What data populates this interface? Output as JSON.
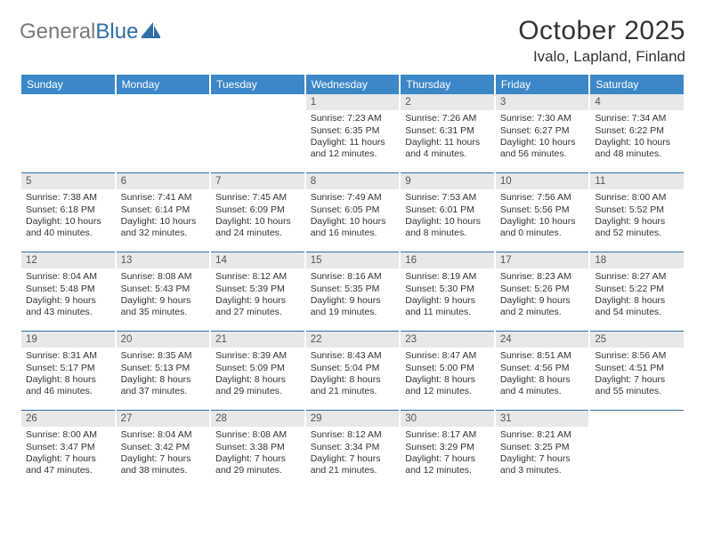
{
  "logo": {
    "text_gray": "General",
    "text_blue": "Blue"
  },
  "title": "October 2025",
  "location": "Ivalo, Lapland, Finland",
  "colors": {
    "header_bg": "#3b87c8",
    "header_text": "#ffffff",
    "rule": "#2f6fa8",
    "daynum_bg": "#e8e8e8",
    "text": "#333333",
    "logo_gray": "#7a7a7a",
    "logo_blue": "#2f6fa8"
  },
  "day_headers": [
    "Sunday",
    "Monday",
    "Tuesday",
    "Wednesday",
    "Thursday",
    "Friday",
    "Saturday"
  ],
  "weeks": [
    [
      {
        "empty": true
      },
      {
        "empty": true
      },
      {
        "empty": true
      },
      {
        "num": "1",
        "sunrise": "Sunrise: 7:23 AM",
        "sunset": "Sunset: 6:35 PM",
        "daylight1": "Daylight: 11 hours",
        "daylight2": "and 12 minutes."
      },
      {
        "num": "2",
        "sunrise": "Sunrise: 7:26 AM",
        "sunset": "Sunset: 6:31 PM",
        "daylight1": "Daylight: 11 hours",
        "daylight2": "and 4 minutes."
      },
      {
        "num": "3",
        "sunrise": "Sunrise: 7:30 AM",
        "sunset": "Sunset: 6:27 PM",
        "daylight1": "Daylight: 10 hours",
        "daylight2": "and 56 minutes."
      },
      {
        "num": "4",
        "sunrise": "Sunrise: 7:34 AM",
        "sunset": "Sunset: 6:22 PM",
        "daylight1": "Daylight: 10 hours",
        "daylight2": "and 48 minutes."
      }
    ],
    [
      {
        "num": "5",
        "sunrise": "Sunrise: 7:38 AM",
        "sunset": "Sunset: 6:18 PM",
        "daylight1": "Daylight: 10 hours",
        "daylight2": "and 40 minutes."
      },
      {
        "num": "6",
        "sunrise": "Sunrise: 7:41 AM",
        "sunset": "Sunset: 6:14 PM",
        "daylight1": "Daylight: 10 hours",
        "daylight2": "and 32 minutes."
      },
      {
        "num": "7",
        "sunrise": "Sunrise: 7:45 AM",
        "sunset": "Sunset: 6:09 PM",
        "daylight1": "Daylight: 10 hours",
        "daylight2": "and 24 minutes."
      },
      {
        "num": "8",
        "sunrise": "Sunrise: 7:49 AM",
        "sunset": "Sunset: 6:05 PM",
        "daylight1": "Daylight: 10 hours",
        "daylight2": "and 16 minutes."
      },
      {
        "num": "9",
        "sunrise": "Sunrise: 7:53 AM",
        "sunset": "Sunset: 6:01 PM",
        "daylight1": "Daylight: 10 hours",
        "daylight2": "and 8 minutes."
      },
      {
        "num": "10",
        "sunrise": "Sunrise: 7:56 AM",
        "sunset": "Sunset: 5:56 PM",
        "daylight1": "Daylight: 10 hours",
        "daylight2": "and 0 minutes."
      },
      {
        "num": "11",
        "sunrise": "Sunrise: 8:00 AM",
        "sunset": "Sunset: 5:52 PM",
        "daylight1": "Daylight: 9 hours",
        "daylight2": "and 52 minutes."
      }
    ],
    [
      {
        "num": "12",
        "sunrise": "Sunrise: 8:04 AM",
        "sunset": "Sunset: 5:48 PM",
        "daylight1": "Daylight: 9 hours",
        "daylight2": "and 43 minutes."
      },
      {
        "num": "13",
        "sunrise": "Sunrise: 8:08 AM",
        "sunset": "Sunset: 5:43 PM",
        "daylight1": "Daylight: 9 hours",
        "daylight2": "and 35 minutes."
      },
      {
        "num": "14",
        "sunrise": "Sunrise: 8:12 AM",
        "sunset": "Sunset: 5:39 PM",
        "daylight1": "Daylight: 9 hours",
        "daylight2": "and 27 minutes."
      },
      {
        "num": "15",
        "sunrise": "Sunrise: 8:16 AM",
        "sunset": "Sunset: 5:35 PM",
        "daylight1": "Daylight: 9 hours",
        "daylight2": "and 19 minutes."
      },
      {
        "num": "16",
        "sunrise": "Sunrise: 8:19 AM",
        "sunset": "Sunset: 5:30 PM",
        "daylight1": "Daylight: 9 hours",
        "daylight2": "and 11 minutes."
      },
      {
        "num": "17",
        "sunrise": "Sunrise: 8:23 AM",
        "sunset": "Sunset: 5:26 PM",
        "daylight1": "Daylight: 9 hours",
        "daylight2": "and 2 minutes."
      },
      {
        "num": "18",
        "sunrise": "Sunrise: 8:27 AM",
        "sunset": "Sunset: 5:22 PM",
        "daylight1": "Daylight: 8 hours",
        "daylight2": "and 54 minutes."
      }
    ],
    [
      {
        "num": "19",
        "sunrise": "Sunrise: 8:31 AM",
        "sunset": "Sunset: 5:17 PM",
        "daylight1": "Daylight: 8 hours",
        "daylight2": "and 46 minutes."
      },
      {
        "num": "20",
        "sunrise": "Sunrise: 8:35 AM",
        "sunset": "Sunset: 5:13 PM",
        "daylight1": "Daylight: 8 hours",
        "daylight2": "and 37 minutes."
      },
      {
        "num": "21",
        "sunrise": "Sunrise: 8:39 AM",
        "sunset": "Sunset: 5:09 PM",
        "daylight1": "Daylight: 8 hours",
        "daylight2": "and 29 minutes."
      },
      {
        "num": "22",
        "sunrise": "Sunrise: 8:43 AM",
        "sunset": "Sunset: 5:04 PM",
        "daylight1": "Daylight: 8 hours",
        "daylight2": "and 21 minutes."
      },
      {
        "num": "23",
        "sunrise": "Sunrise: 8:47 AM",
        "sunset": "Sunset: 5:00 PM",
        "daylight1": "Daylight: 8 hours",
        "daylight2": "and 12 minutes."
      },
      {
        "num": "24",
        "sunrise": "Sunrise: 8:51 AM",
        "sunset": "Sunset: 4:56 PM",
        "daylight1": "Daylight: 8 hours",
        "daylight2": "and 4 minutes."
      },
      {
        "num": "25",
        "sunrise": "Sunrise: 8:56 AM",
        "sunset": "Sunset: 4:51 PM",
        "daylight1": "Daylight: 7 hours",
        "daylight2": "and 55 minutes."
      }
    ],
    [
      {
        "num": "26",
        "sunrise": "Sunrise: 8:00 AM",
        "sunset": "Sunset: 3:47 PM",
        "daylight1": "Daylight: 7 hours",
        "daylight2": "and 47 minutes."
      },
      {
        "num": "27",
        "sunrise": "Sunrise: 8:04 AM",
        "sunset": "Sunset: 3:42 PM",
        "daylight1": "Daylight: 7 hours",
        "daylight2": "and 38 minutes."
      },
      {
        "num": "28",
        "sunrise": "Sunrise: 8:08 AM",
        "sunset": "Sunset: 3:38 PM",
        "daylight1": "Daylight: 7 hours",
        "daylight2": "and 29 minutes."
      },
      {
        "num": "29",
        "sunrise": "Sunrise: 8:12 AM",
        "sunset": "Sunset: 3:34 PM",
        "daylight1": "Daylight: 7 hours",
        "daylight2": "and 21 minutes."
      },
      {
        "num": "30",
        "sunrise": "Sunrise: 8:17 AM",
        "sunset": "Sunset: 3:29 PM",
        "daylight1": "Daylight: 7 hours",
        "daylight2": "and 12 minutes."
      },
      {
        "num": "31",
        "sunrise": "Sunrise: 8:21 AM",
        "sunset": "Sunset: 3:25 PM",
        "daylight1": "Daylight: 7 hours",
        "daylight2": "and 3 minutes."
      },
      {
        "empty": true
      }
    ]
  ]
}
